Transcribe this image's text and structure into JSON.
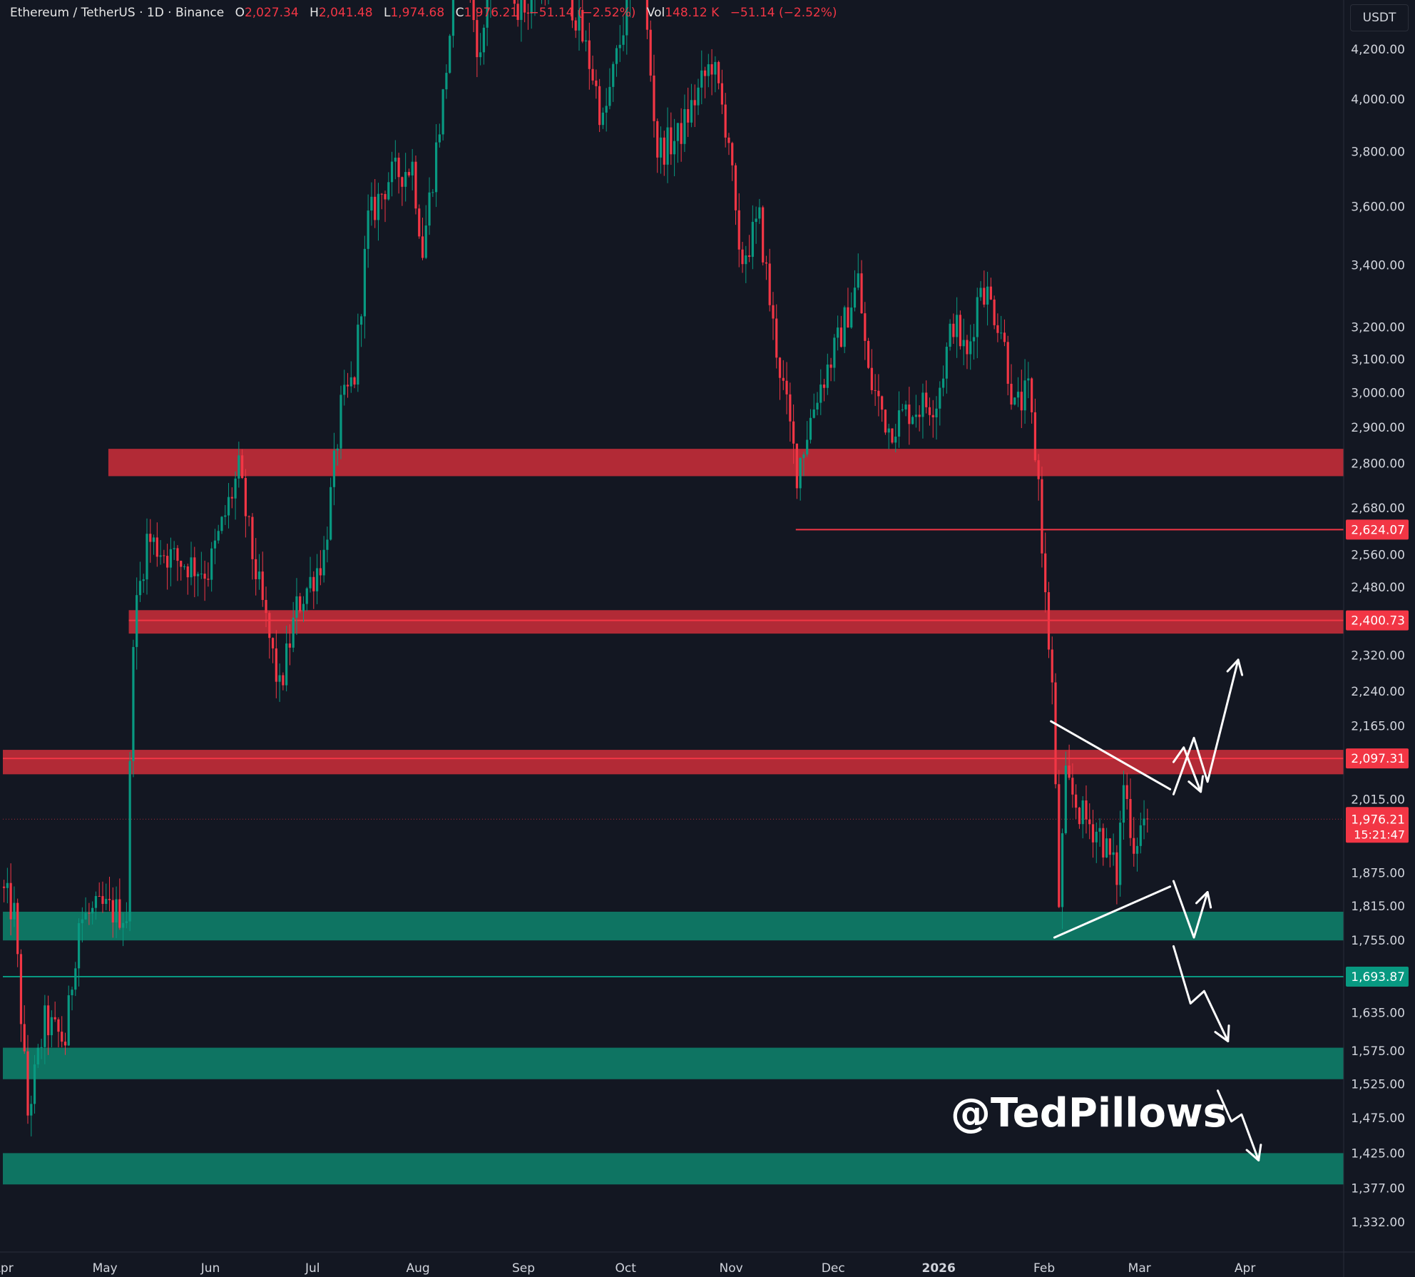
{
  "header": {
    "symbol": "Ethereum / TetherUS · 1D · Binance",
    "open_key": "O",
    "open": "2,027.34",
    "high_key": "H",
    "high": "2,041.48",
    "low_key": "L",
    "low": "1,974.68",
    "close_key": "C",
    "close": "1,976.21",
    "change": "−51.14 (−2.52%)",
    "vol_key": "Vol",
    "vol": "148.12 K",
    "vol_change": "−51.14 (−2.52%)"
  },
  "currency_button": "USDT",
  "watermark": "@TedPillows",
  "colors": {
    "background": "#131722",
    "bull": "#089981",
    "bear": "#f23645",
    "resistance_zone": "#b22a36",
    "support_zone": "#0e7462",
    "label_red": "#f23645",
    "label_green": "#089981",
    "axis_text": "#d1d4dc"
  },
  "chart_data": {
    "type": "candlestick",
    "y_scale": "log",
    "ylim": [
      1300,
      4300
    ],
    "x_start": "2025-04-01",
    "x_end": "2026-04-30",
    "y_ticks": [
      "4,200.00",
      "4,000.00",
      "3,800.00",
      "3,600.00",
      "3,400.00",
      "3,200.00",
      "3,100.00",
      "3,000.00",
      "2,900.00",
      "2,800.00",
      "2,680.00",
      "2,560.00",
      "2,480.00",
      "2,320.00",
      "2,240.00",
      "2,165.00",
      "2,015.00",
      "1,875.00",
      "1,815.00",
      "1,755.00",
      "1,635.00",
      "1,575.00",
      "1,525.00",
      "1,475.00",
      "1,425.00",
      "1,377.00",
      "1,332.00"
    ],
    "y_tick_values": [
      4200,
      4000,
      3800,
      3600,
      3400,
      3200,
      3100,
      3000,
      2900,
      2800,
      2680,
      2560,
      2480,
      2320,
      2240,
      2165,
      2015,
      1875,
      1815,
      1755,
      1635,
      1575,
      1525,
      1475,
      1425,
      1377,
      1332
    ],
    "x_ticks": [
      {
        "label": "Apr",
        "date": "2025-04-01"
      },
      {
        "label": "May",
        "date": "2025-05-01"
      },
      {
        "label": "Jun",
        "date": "2025-06-01"
      },
      {
        "label": "Jul",
        "date": "2025-07-01"
      },
      {
        "label": "Aug",
        "date": "2025-08-01"
      },
      {
        "label": "Sep",
        "date": "2025-09-01"
      },
      {
        "label": "Oct",
        "date": "2025-10-01"
      },
      {
        "label": "Nov",
        "date": "2025-11-01"
      },
      {
        "label": "Dec",
        "date": "2025-12-01"
      },
      {
        "label": "2026",
        "date": "2026-01-01"
      },
      {
        "label": "Feb",
        "date": "2026-02-01"
      },
      {
        "label": "Mar",
        "date": "2026-03-01"
      },
      {
        "label": "Apr",
        "date": "2026-04-01"
      }
    ],
    "price_path": [
      {
        "date": "2025-04-01",
        "price": 1850
      },
      {
        "date": "2025-04-05",
        "price": 1800
      },
      {
        "date": "2025-04-09",
        "price": 1480
      },
      {
        "date": "2025-04-14",
        "price": 1620
      },
      {
        "date": "2025-04-20",
        "price": 1590
      },
      {
        "date": "2025-04-24",
        "price": 1790
      },
      {
        "date": "2025-05-01",
        "price": 1810
      },
      {
        "date": "2025-05-08",
        "price": 1800
      },
      {
        "date": "2025-05-10",
        "price": 2380
      },
      {
        "date": "2025-05-14",
        "price": 2600
      },
      {
        "date": "2025-05-22",
        "price": 2550
      },
      {
        "date": "2025-06-01",
        "price": 2520
      },
      {
        "date": "2025-06-10",
        "price": 2780
      },
      {
        "date": "2025-06-14",
        "price": 2560
      },
      {
        "date": "2025-06-22",
        "price": 2240
      },
      {
        "date": "2025-06-27",
        "price": 2430
      },
      {
        "date": "2025-07-05",
        "price": 2560
      },
      {
        "date": "2025-07-10",
        "price": 2950
      },
      {
        "date": "2025-07-14",
        "price": 3050
      },
      {
        "date": "2025-07-18",
        "price": 3550
      },
      {
        "date": "2025-07-24",
        "price": 3700
      },
      {
        "date": "2025-07-31",
        "price": 3750
      },
      {
        "date": "2025-08-03",
        "price": 3450
      },
      {
        "date": "2025-08-09",
        "price": 4000
      },
      {
        "date": "2025-08-14",
        "price": 4700
      },
      {
        "date": "2025-08-20",
        "price": 4150
      },
      {
        "date": "2025-08-24",
        "price": 4750
      },
      {
        "date": "2025-09-01",
        "price": 4350
      },
      {
        "date": "2025-09-12",
        "price": 4600
      },
      {
        "date": "2025-09-22",
        "price": 4100
      },
      {
        "date": "2025-09-25",
        "price": 3900
      },
      {
        "date": "2025-10-01",
        "price": 4300
      },
      {
        "date": "2025-10-06",
        "price": 4600
      },
      {
        "date": "2025-10-11",
        "price": 3800
      },
      {
        "date": "2025-10-17",
        "price": 3850
      },
      {
        "date": "2025-10-27",
        "price": 4150
      },
      {
        "date": "2025-11-01",
        "price": 3850
      },
      {
        "date": "2025-11-04",
        "price": 3400
      },
      {
        "date": "2025-11-10",
        "price": 3550
      },
      {
        "date": "2025-11-14",
        "price": 3200
      },
      {
        "date": "2025-11-21",
        "price": 2780
      },
      {
        "date": "2025-11-27",
        "price": 3000
      },
      {
        "date": "2025-12-03",
        "price": 3150
      },
      {
        "date": "2025-12-09",
        "price": 3350
      },
      {
        "date": "2025-12-12",
        "price": 3050
      },
      {
        "date": "2025-12-18",
        "price": 2900
      },
      {
        "date": "2025-12-24",
        "price": 2950
      },
      {
        "date": "2026-01-01",
        "price": 2980
      },
      {
        "date": "2026-01-06",
        "price": 3220
      },
      {
        "date": "2026-01-10",
        "price": 3100
      },
      {
        "date": "2026-01-14",
        "price": 3350
      },
      {
        "date": "2026-01-20",
        "price": 3200
      },
      {
        "date": "2026-01-24",
        "price": 2950
      },
      {
        "date": "2026-01-28",
        "price": 3000
      },
      {
        "date": "2026-01-31",
        "price": 2750
      },
      {
        "date": "2026-02-02",
        "price": 2450
      },
      {
        "date": "2026-02-04",
        "price": 2250
      },
      {
        "date": "2026-02-06",
        "price": 1820
      },
      {
        "date": "2026-02-08",
        "price": 2050
      },
      {
        "date": "2026-02-13",
        "price": 1980
      },
      {
        "date": "2026-02-18",
        "price": 1950
      },
      {
        "date": "2026-02-23",
        "price": 1870
      },
      {
        "date": "2026-02-25",
        "price": 2050
      },
      {
        "date": "2026-02-28",
        "price": 1930
      },
      {
        "date": "2026-03-03",
        "price": 1976
      }
    ],
    "zones": [
      {
        "kind": "resistance",
        "x_from": "2025-05-02",
        "x_to": "2026-04-30",
        "y_low": 2765,
        "y_high": 2840
      },
      {
        "kind": "resistance",
        "x_from": "2025-05-08",
        "x_to": "2026-04-30",
        "y_low": 2370,
        "y_high": 2425
      },
      {
        "kind": "resistance",
        "x_from": "2025-04-01",
        "x_to": "2026-04-30",
        "y_low": 2065,
        "y_high": 2115
      },
      {
        "kind": "support",
        "x_from": "2025-04-01",
        "x_to": "2026-04-30",
        "y_low": 1755,
        "y_high": 1805
      },
      {
        "kind": "support",
        "x_from": "2025-04-01",
        "x_to": "2026-04-30",
        "y_low": 1532,
        "y_high": 1580
      },
      {
        "kind": "support",
        "x_from": "2025-04-01",
        "x_to": "2026-04-30",
        "y_low": 1382,
        "y_high": 1425
      }
    ],
    "levels": [
      {
        "price": 2624.07,
        "label": "2,624.07",
        "color": "red",
        "x_from": "2025-11-20"
      },
      {
        "price": 2400.73,
        "label": "2,400.73",
        "color": "red",
        "x_from": "2025-05-08"
      },
      {
        "price": 2097.31,
        "label": "2,097.31",
        "color": "red",
        "x_from": "2025-04-01"
      },
      {
        "price": 1693.87,
        "label": "1,693.87",
        "color": "green",
        "x_from": "2025-04-01"
      }
    ],
    "current_price": {
      "price": 1976.21,
      "label": "1,976.21",
      "countdown": "15:21:47"
    },
    "annotations": {
      "triangle_upper": [
        {
          "date": "2026-02-03",
          "price": 2175
        },
        {
          "date": "2026-03-10",
          "price": 2035
        }
      ],
      "triangle_lower": [
        {
          "date": "2026-02-04",
          "price": 1760
        },
        {
          "date": "2026-03-10",
          "price": 1850
        }
      ],
      "arrows": [
        {
          "direction": "up",
          "points": [
            {
              "date": "2026-03-11",
              "price": 2025
            },
            {
              "date": "2026-03-17",
              "price": 2140
            },
            {
              "date": "2026-03-21",
              "price": 2050
            },
            {
              "date": "2026-03-30",
              "price": 2310
            }
          ]
        },
        {
          "direction": "down",
          "points": [
            {
              "date": "2026-03-11",
              "price": 2090
            },
            {
              "date": "2026-03-14",
              "price": 2120
            },
            {
              "date": "2026-03-19",
              "price": 2030
            }
          ]
        },
        {
          "direction": "up",
          "points": [
            {
              "date": "2026-03-11",
              "price": 1860
            },
            {
              "date": "2026-03-17",
              "price": 1760
            },
            {
              "date": "2026-03-21",
              "price": 1840
            }
          ]
        },
        {
          "direction": "down",
          "points": [
            {
              "date": "2026-03-11",
              "price": 1745
            },
            {
              "date": "2026-03-16",
              "price": 1650
            },
            {
              "date": "2026-03-20",
              "price": 1670
            },
            {
              "date": "2026-03-27",
              "price": 1590
            }
          ]
        },
        {
          "direction": "down",
          "points": [
            {
              "date": "2026-03-24",
              "price": 1515
            },
            {
              "date": "2026-03-28",
              "price": 1470
            },
            {
              "date": "2026-03-31",
              "price": 1480
            },
            {
              "date": "2026-04-05",
              "price": 1415
            }
          ]
        }
      ]
    }
  }
}
